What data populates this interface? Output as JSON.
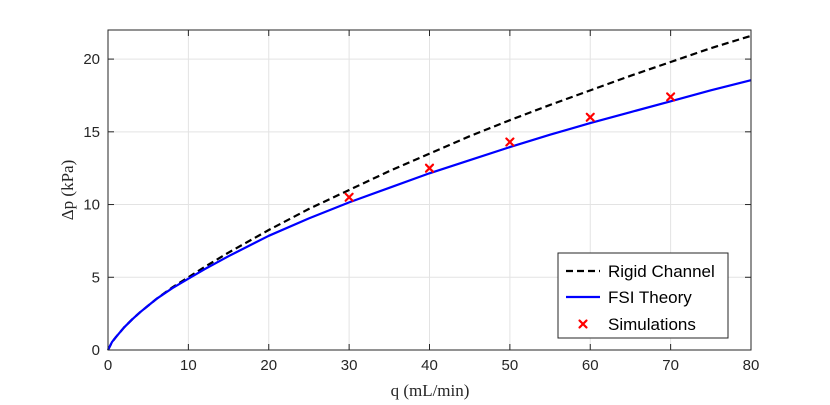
{
  "chart_data": {
    "type": "line",
    "title": "",
    "xlabel": "q (mL/min)",
    "ylabel": "Δp (kPa)",
    "xlim": [
      0,
      80
    ],
    "ylim": [
      0,
      22
    ],
    "xticks": [
      "0",
      "10",
      "20",
      "30",
      "40",
      "50",
      "60",
      "70",
      "80"
    ],
    "yticks": [
      "0",
      "5",
      "10",
      "15",
      "20"
    ],
    "grid": true,
    "legend_position": "bottom-right",
    "series": [
      {
        "name": "Rigid Channel",
        "style": "dashed",
        "color": "#000000",
        "x": [
          0,
          0.5,
          1,
          2,
          3,
          4,
          5,
          6,
          8,
          10,
          12,
          15,
          20,
          25,
          30,
          35,
          40,
          45,
          50,
          55,
          60,
          65,
          70,
          75,
          80
        ],
        "y": [
          0,
          0.55,
          0.9,
          1.55,
          2.1,
          2.6,
          3.05,
          3.5,
          4.3,
          5.0,
          5.7,
          6.7,
          8.25,
          9.7,
          11.0,
          12.3,
          13.5,
          14.7,
          15.8,
          16.85,
          17.85,
          18.85,
          19.8,
          20.75,
          21.6
        ]
      },
      {
        "name": "FSI Theory",
        "style": "solid",
        "color": "#0000ff",
        "x": [
          0,
          0.5,
          1,
          2,
          3,
          4,
          5,
          6,
          8,
          10,
          12,
          15,
          20,
          25,
          30,
          35,
          40,
          45,
          50,
          55,
          60,
          65,
          70,
          75,
          80
        ],
        "y": [
          0,
          0.55,
          0.9,
          1.55,
          2.1,
          2.6,
          3.05,
          3.5,
          4.25,
          4.9,
          5.55,
          6.45,
          7.85,
          9.05,
          10.15,
          11.15,
          12.15,
          13.05,
          13.95,
          14.8,
          15.6,
          16.35,
          17.1,
          17.85,
          18.55
        ]
      },
      {
        "name": "Simulations",
        "style": "markers",
        "marker": "x",
        "color": "#ff0000",
        "x": [
          30,
          40,
          50,
          60,
          70
        ],
        "y": [
          10.5,
          12.5,
          14.3,
          16.0,
          17.4
        ]
      }
    ]
  }
}
